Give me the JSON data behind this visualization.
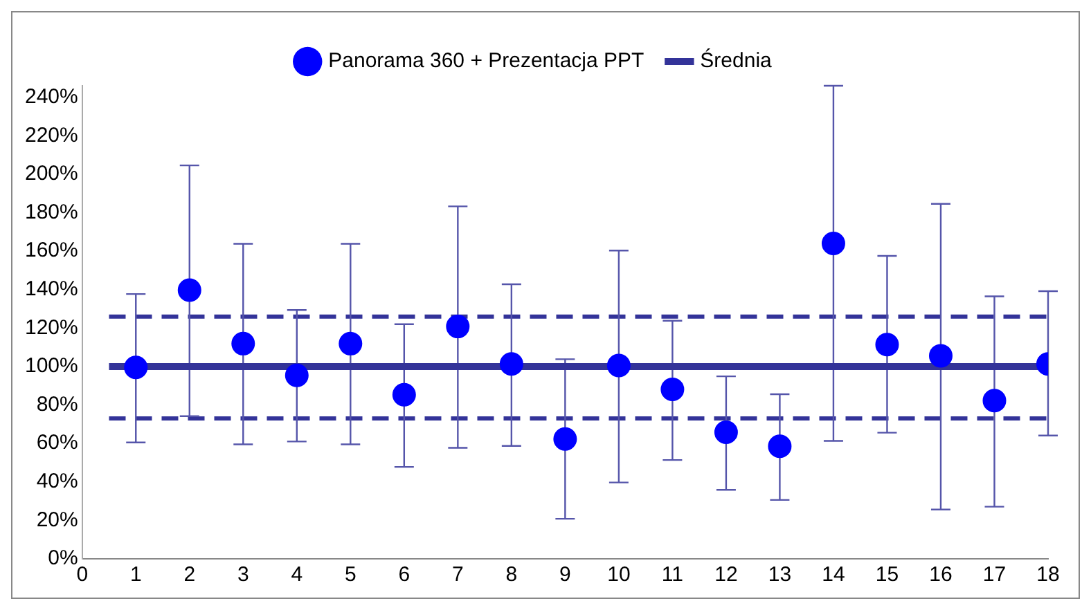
{
  "chart_data": {
    "type": "scatter",
    "x": [
      1,
      2,
      3,
      4,
      5,
      6,
      7,
      8,
      9,
      10,
      11,
      12,
      13,
      14,
      15,
      16,
      17,
      18
    ],
    "series": [
      {
        "name": "Panorama 360 + Prezentacja PPT",
        "color": "#0000ff",
        "marker": "circle",
        "values": [
          99.5,
          139.7,
          111.9,
          95.4,
          111.9,
          85.3,
          120.8,
          101.3,
          62.3,
          100.5,
          88.1,
          65.8,
          58.5,
          164,
          111.4,
          105.6,
          82.3,
          101.3
        ],
        "errors": [
          [
            60.5,
            137.7
          ],
          [
            74.2,
            204.6
          ],
          [
            59.5,
            163.8
          ],
          [
            61,
            129.4
          ],
          [
            59.5,
            163.8
          ],
          [
            47.8,
            122
          ],
          [
            57.7,
            183.3
          ],
          [
            58.7,
            142.8
          ],
          [
            20.8,
            103.8
          ],
          [
            39.7,
            160.3
          ],
          [
            51.4,
            123.8
          ],
          [
            35.9,
            94.9
          ],
          [
            30.6,
            85.6
          ],
          [
            61.3,
            246
          ],
          [
            65.6,
            157.5
          ],
          [
            25.6,
            184.6
          ],
          [
            27.1,
            136.5
          ],
          [
            64.1,
            139.2
          ]
        ]
      },
      {
        "name": "Średnia",
        "type": "line",
        "color": "#333399",
        "marker": "none",
        "line_style": "solid",
        "x": [
          0.5,
          18
        ],
        "values": [
          100,
          100
        ]
      }
    ],
    "ref_lines": [
      {
        "axis": "y",
        "value": 126,
        "color": "#333399",
        "line_style": "dashed"
      },
      {
        "axis": "y",
        "value": 73,
        "color": "#333399",
        "line_style": "dashed"
      }
    ],
    "xlim": [
      0,
      18
    ],
    "xticks": [
      0,
      1,
      2,
      3,
      4,
      5,
      6,
      7,
      8,
      9,
      10,
      11,
      12,
      13,
      14,
      15,
      16,
      17,
      18
    ],
    "ylim": [
      0,
      246
    ],
    "yticks": [
      {
        "value": 0,
        "label": "0%"
      },
      {
        "value": 20,
        "label": "20%"
      },
      {
        "value": 40,
        "label": "40%"
      },
      {
        "value": 60,
        "label": "60%"
      },
      {
        "value": 80,
        "label": "80%"
      },
      {
        "value": 100,
        "label": "100%"
      },
      {
        "value": 120,
        "label": "120%"
      },
      {
        "value": 140,
        "label": "140%"
      },
      {
        "value": 160,
        "label": "160%"
      },
      {
        "value": 180,
        "label": "180%"
      },
      {
        "value": 200,
        "label": "200%"
      },
      {
        "value": 220,
        "label": "220%"
      },
      {
        "value": 240,
        "label": "240%"
      }
    ],
    "grid": false,
    "legend": "top"
  }
}
